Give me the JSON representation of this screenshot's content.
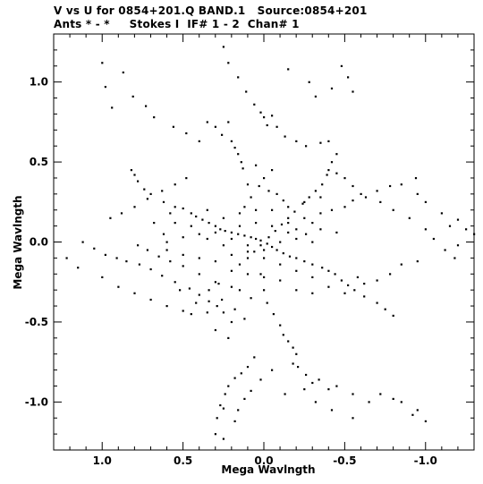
{
  "header": {
    "line1": "V vs U for 0854+201.Q BAND.1   Source:0854+201",
    "line2": "Ants * - *     Stokes I  IF# 1 - 2  Chan# 1"
  },
  "chart_data": {
    "type": "scatter",
    "title": "V vs U for 0854+201.Q BAND.1   Source:0854+201",
    "subtitle": "Ants * - *     Stokes I  IF# 1 - 2  Chan# 1",
    "xlabel": "Mega Wavlngth",
    "ylabel": "Mega Wavlngth",
    "xlim": [
      1.3,
      -1.3
    ],
    "ylim": [
      -1.3,
      1.3
    ],
    "xticks": [
      1.0,
      0.5,
      0.0,
      -0.5,
      -1.0
    ],
    "xtick_labels": [
      "1.0",
      "0.5",
      "0.0",
      "-0.5",
      "-1.0"
    ],
    "yticks": [
      1.0,
      0.5,
      0.0,
      -0.5,
      -1.0
    ],
    "ytick_labels": [
      "1.0",
      "0.5",
      "0.0",
      "-0.5",
      "-1.0"
    ],
    "grid": false,
    "series": [
      {
        "points": [
          [
            1.0,
            1.12
          ],
          [
            0.98,
            0.97
          ],
          [
            0.94,
            0.84
          ],
          [
            0.87,
            1.06
          ],
          [
            0.81,
            0.91
          ],
          [
            0.73,
            0.85
          ],
          [
            0.68,
            0.78
          ],
          [
            0.56,
            0.72
          ],
          [
            0.48,
            0.68
          ],
          [
            0.4,
            0.63
          ],
          [
            0.35,
            0.75
          ],
          [
            0.3,
            0.72
          ],
          [
            0.26,
            0.67
          ],
          [
            0.22,
            0.75
          ],
          [
            0.2,
            0.63
          ],
          [
            0.18,
            0.59
          ],
          [
            0.16,
            0.55
          ],
          [
            0.14,
            0.5
          ],
          [
            0.13,
            0.46
          ],
          [
            0.25,
            1.22
          ],
          [
            0.22,
            1.12
          ],
          [
            0.16,
            1.03
          ],
          [
            0.11,
            0.94
          ],
          [
            0.06,
            0.86
          ],
          [
            0.02,
            0.81
          ],
          [
            -0.05,
            0.79
          ],
          [
            -0.02,
            0.73
          ],
          [
            -0.15,
            1.08
          ],
          [
            -0.28,
            1.0
          ],
          [
            -0.32,
            0.91
          ],
          [
            -0.42,
            0.96
          ],
          [
            -0.48,
            1.1
          ],
          [
            -0.52,
            1.03
          ],
          [
            -0.55,
            0.94
          ],
          [
            0.0,
            0.78
          ],
          [
            -0.08,
            0.72
          ],
          [
            -0.13,
            0.66
          ],
          [
            -0.2,
            0.63
          ],
          [
            -0.26,
            0.6
          ],
          [
            -0.35,
            0.62
          ],
          [
            1.12,
            0.0
          ],
          [
            1.05,
            -0.04
          ],
          [
            0.98,
            -0.08
          ],
          [
            0.91,
            -0.1
          ],
          [
            0.85,
            -0.12
          ],
          [
            0.77,
            -0.14
          ],
          [
            0.7,
            -0.17
          ],
          [
            0.63,
            -0.21
          ],
          [
            0.55,
            -0.25
          ],
          [
            0.46,
            -0.29
          ],
          [
            0.4,
            -0.33
          ],
          [
            0.34,
            -0.37
          ],
          [
            0.29,
            -0.4
          ],
          [
            0.25,
            -0.44
          ],
          [
            0.2,
            -0.5
          ],
          [
            1.22,
            -0.1
          ],
          [
            1.15,
            -0.16
          ],
          [
            1.0,
            -0.22
          ],
          [
            0.9,
            -0.28
          ],
          [
            0.8,
            -0.32
          ],
          [
            0.7,
            -0.36
          ],
          [
            0.6,
            -0.4
          ],
          [
            0.5,
            -0.43
          ],
          [
            0.45,
            -0.45
          ],
          [
            0.95,
            0.15
          ],
          [
            0.88,
            0.18
          ],
          [
            0.8,
            0.22
          ],
          [
            0.72,
            0.27
          ],
          [
            0.63,
            0.32
          ],
          [
            0.55,
            0.36
          ],
          [
            0.48,
            0.4
          ],
          [
            0.82,
            0.45
          ],
          [
            0.8,
            0.42
          ],
          [
            0.78,
            0.38
          ],
          [
            0.74,
            0.33
          ],
          [
            0.7,
            0.3
          ],
          [
            0.62,
            0.25
          ],
          [
            0.55,
            0.22
          ],
          [
            0.5,
            0.21
          ],
          [
            0.42,
            0.16
          ],
          [
            0.38,
            0.14
          ],
          [
            0.34,
            0.12
          ],
          [
            0.3,
            0.1
          ],
          [
            0.27,
            0.08
          ],
          [
            0.24,
            0.07
          ],
          [
            0.2,
            0.06
          ],
          [
            0.16,
            0.05
          ],
          [
            0.12,
            0.04
          ],
          [
            0.08,
            0.03
          ],
          [
            0.05,
            0.02
          ],
          [
            0.02,
            0.01
          ],
          [
            -0.02,
            -0.01
          ],
          [
            -0.05,
            -0.03
          ],
          [
            -0.08,
            -0.05
          ],
          [
            -0.12,
            -0.07
          ],
          [
            -0.16,
            -0.09
          ],
          [
            -0.2,
            -0.1
          ],
          [
            -0.25,
            -0.12
          ],
          [
            -0.3,
            -0.14
          ],
          [
            -0.36,
            -0.16
          ],
          [
            -0.4,
            -0.18
          ],
          [
            -0.44,
            -0.2
          ],
          [
            -0.48,
            -0.24
          ],
          [
            -0.52,
            -0.27
          ],
          [
            -0.56,
            -0.3
          ],
          [
            -0.62,
            -0.34
          ],
          [
            -0.7,
            -0.38
          ],
          [
            -0.75,
            -0.42
          ],
          [
            -0.8,
            -0.46
          ],
          [
            0.28,
            -0.26
          ],
          [
            0.2,
            -0.18
          ],
          [
            0.15,
            -0.14
          ],
          [
            0.1,
            -0.1
          ],
          [
            0.06,
            -0.06
          ],
          [
            0.02,
            -0.02
          ],
          [
            -0.03,
            0.03
          ],
          [
            -0.07,
            0.07
          ],
          [
            -0.11,
            0.11
          ],
          [
            -0.15,
            0.15
          ],
          [
            -0.19,
            0.19
          ],
          [
            -0.24,
            0.24
          ],
          [
            -0.28,
            0.28
          ],
          [
            -0.32,
            0.32
          ],
          [
            -0.36,
            0.36
          ],
          [
            -0.39,
            0.42
          ],
          [
            -0.42,
            0.5
          ],
          [
            -0.45,
            0.55
          ],
          [
            -0.4,
            0.63
          ],
          [
            -0.15,
            0.06
          ],
          [
            -0.2,
            0.08
          ],
          [
            -0.26,
            0.05
          ],
          [
            -0.3,
            0.12
          ],
          [
            -0.35,
            0.18
          ],
          [
            -0.42,
            0.2
          ],
          [
            -0.5,
            0.22
          ],
          [
            -0.55,
            0.26
          ],
          [
            -0.63,
            0.28
          ],
          [
            -0.7,
            0.32
          ],
          [
            -0.78,
            0.35
          ],
          [
            -0.85,
            0.36
          ],
          [
            -0.94,
            0.4
          ],
          [
            -0.95,
            0.3
          ],
          [
            -1.0,
            0.25
          ],
          [
            -1.1,
            0.18
          ],
          [
            -1.2,
            0.14
          ],
          [
            -1.25,
            0.08
          ],
          [
            -1.3,
            0.05
          ],
          [
            -1.15,
            0.1
          ],
          [
            -0.4,
            0.45
          ],
          [
            -0.45,
            0.43
          ],
          [
            -0.5,
            0.4
          ],
          [
            -0.55,
            0.35
          ],
          [
            -0.6,
            0.3
          ],
          [
            -0.72,
            0.25
          ],
          [
            -0.8,
            0.2
          ],
          [
            -0.9,
            0.15
          ],
          [
            -1.0,
            0.08
          ],
          [
            -1.05,
            0.02
          ],
          [
            -1.12,
            -0.05
          ],
          [
            -1.18,
            -0.1
          ],
          [
            -1.2,
            -0.02
          ],
          [
            -0.95,
            -0.12
          ],
          [
            -0.85,
            -0.14
          ],
          [
            -0.78,
            -0.2
          ],
          [
            -0.7,
            -0.24
          ],
          [
            -0.62,
            -0.26
          ],
          [
            -0.58,
            -0.22
          ],
          [
            0.02,
            -0.2
          ],
          [
            0.0,
            -0.3
          ],
          [
            -0.02,
            -0.38
          ],
          [
            -0.06,
            -0.45
          ],
          [
            -0.1,
            -0.52
          ],
          [
            -0.12,
            -0.58
          ],
          [
            -0.15,
            -0.62
          ],
          [
            -0.18,
            -0.66
          ],
          [
            -0.2,
            -0.7
          ],
          [
            -0.18,
            -0.76
          ],
          [
            -0.21,
            -0.78
          ],
          [
            -0.26,
            -0.83
          ],
          [
            -0.34,
            -0.86
          ],
          [
            -0.45,
            -0.9
          ],
          [
            -0.55,
            -0.95
          ],
          [
            -0.65,
            -1.0
          ],
          [
            -0.72,
            -0.95
          ],
          [
            -0.8,
            -0.98
          ],
          [
            -0.92,
            -1.08
          ],
          [
            -1.0,
            -1.12
          ],
          [
            -0.95,
            -1.05
          ],
          [
            -0.85,
            -1.0
          ],
          [
            0.06,
            -0.72
          ],
          [
            0.1,
            -0.78
          ],
          [
            0.14,
            -0.82
          ],
          [
            0.18,
            -0.85
          ],
          [
            0.22,
            -0.9
          ],
          [
            0.24,
            -0.95
          ],
          [
            0.27,
            -1.02
          ],
          [
            0.29,
            -1.1
          ],
          [
            0.3,
            -1.2
          ],
          [
            0.18,
            -1.12
          ],
          [
            0.16,
            -1.05
          ],
          [
            0.12,
            -0.98
          ],
          [
            0.08,
            -0.93
          ],
          [
            0.02,
            -0.86
          ],
          [
            -0.05,
            -0.8
          ],
          [
            0.25,
            -1.04
          ],
          [
            0.25,
            -1.23
          ],
          [
            -0.13,
            -0.95
          ],
          [
            -0.25,
            -0.92
          ],
          [
            -0.32,
            -1.0
          ],
          [
            -0.42,
            -1.05
          ],
          [
            -0.55,
            -1.1
          ],
          [
            -0.4,
            -0.92
          ],
          [
            -0.3,
            -0.88
          ],
          [
            0.12,
            -0.48
          ],
          [
            0.18,
            -0.42
          ],
          [
            0.26,
            -0.36
          ],
          [
            0.34,
            -0.3
          ],
          [
            0.5,
            -0.15
          ],
          [
            0.58,
            -0.12
          ],
          [
            0.65,
            -0.09
          ],
          [
            0.72,
            -0.05
          ],
          [
            0.78,
            -0.02
          ],
          [
            0.6,
            0.0
          ],
          [
            0.5,
            0.03
          ],
          [
            0.4,
            0.05
          ],
          [
            0.3,
            0.06
          ],
          [
            0.2,
            0.02
          ],
          [
            0.1,
            -0.02
          ],
          [
            0.0,
            -0.05
          ],
          [
            -0.1,
            0.0
          ],
          [
            -0.2,
            0.02
          ],
          [
            -0.3,
            0.0
          ],
          [
            0.45,
            0.1
          ],
          [
            0.35,
            0.02
          ],
          [
            0.25,
            -0.02
          ],
          [
            0.15,
            0.1
          ],
          [
            0.05,
            0.12
          ],
          [
            -0.05,
            0.1
          ],
          [
            -0.15,
            0.12
          ],
          [
            -0.25,
            0.15
          ],
          [
            -0.35,
            0.08
          ],
          [
            -0.45,
            0.06
          ],
          [
            0.4,
            -0.1
          ],
          [
            0.3,
            -0.12
          ],
          [
            0.2,
            -0.08
          ],
          [
            0.1,
            -0.06
          ],
          [
            0.0,
            -0.1
          ],
          [
            -0.1,
            -0.14
          ],
          [
            -0.2,
            -0.18
          ],
          [
            -0.3,
            -0.22
          ],
          [
            -0.4,
            -0.28
          ],
          [
            -0.5,
            -0.32
          ],
          [
            0.55,
            0.12
          ],
          [
            0.45,
            0.18
          ],
          [
            0.35,
            0.2
          ],
          [
            0.25,
            0.15
          ],
          [
            0.15,
            0.18
          ],
          [
            0.05,
            0.2
          ],
          [
            -0.05,
            0.2
          ],
          [
            -0.15,
            0.22
          ],
          [
            -0.25,
            0.25
          ],
          [
            -0.35,
            0.28
          ],
          [
            0.6,
            -0.05
          ],
          [
            0.5,
            -0.08
          ],
          [
            0.4,
            -0.2
          ],
          [
            0.3,
            -0.25
          ],
          [
            0.2,
            -0.28
          ],
          [
            0.1,
            -0.2
          ],
          [
            0.0,
            -0.22
          ],
          [
            -0.1,
            -0.24
          ],
          [
            -0.2,
            -0.3
          ],
          [
            -0.3,
            -0.32
          ],
          [
            0.68,
            0.12
          ],
          [
            0.58,
            0.18
          ],
          [
            0.62,
            0.05
          ],
          [
            0.52,
            -0.3
          ],
          [
            0.42,
            -0.38
          ],
          [
            0.35,
            -0.44
          ],
          [
            0.3,
            -0.55
          ],
          [
            0.22,
            -0.6
          ],
          [
            0.15,
            -0.3
          ],
          [
            0.08,
            -0.35
          ],
          [
            0.03,
            0.35
          ],
          [
            -0.03,
            0.32
          ],
          [
            0.08,
            0.28
          ],
          [
            -0.08,
            0.3
          ],
          [
            0.12,
            0.22
          ],
          [
            -0.12,
            0.26
          ],
          [
            0.0,
            0.4
          ],
          [
            -0.05,
            0.45
          ],
          [
            0.05,
            0.48
          ],
          [
            0.1,
            0.36
          ]
        ]
      }
    ]
  }
}
